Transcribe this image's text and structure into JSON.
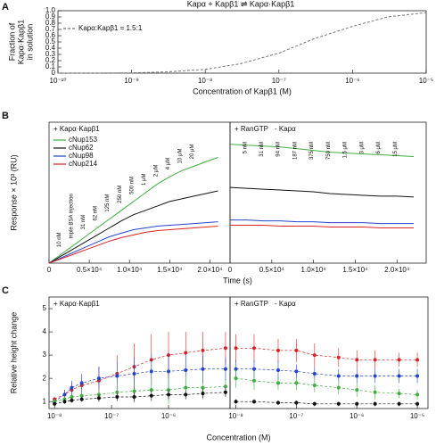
{
  "chart_data": [
    {
      "panel": "A",
      "type": "line",
      "title": "Kapα + Kapβ1 ⇌ Kapα·Kapβ1",
      "xlabel": "Concentration of Kapβ1 (M)",
      "ylabel": [
        "Fraction of",
        "Kapα·Kapβ1",
        "in solution"
      ],
      "xscale": "log",
      "xlim": [
        1e-10,
        1e-05
      ],
      "xticks": [
        {
          "value": 1e-10,
          "label": "10⁻¹⁰"
        },
        {
          "value": 1e-09,
          "label": "10⁻⁹"
        },
        {
          "value": 1e-08,
          "label": "10⁻⁸"
        },
        {
          "value": 1e-07,
          "label": "10⁻⁷"
        },
        {
          "value": 1e-06,
          "label": "10⁻⁶"
        },
        {
          "value": 1e-05,
          "label": "10⁻⁵"
        }
      ],
      "ylim": [
        0,
        1
      ],
      "yticks": [
        0,
        0.1,
        0.2,
        0.3,
        0.4,
        0.5,
        0.6,
        0.7,
        0.8,
        0.9,
        {
          "value": 1,
          "label": "1.0"
        }
      ],
      "subplots": [
        {
          "x": [
            1e-10,
            3e-10,
            1e-09,
            3e-09,
            1e-08,
            3e-08,
            1e-07,
            3e-07,
            1e-06,
            3e-06,
            1e-05
          ],
          "series": [
            {
              "name": "Kapα:Kapβ1 = 1.5:1",
              "color": "#777777",
              "dashed": true,
              "values": [
                0,
                0,
                0.005,
                0.02,
                0.06,
                0.15,
                0.32,
                0.55,
                0.75,
                0.9,
                0.97
              ]
            }
          ]
        }
      ]
    },
    {
      "panel": "B",
      "type": "line",
      "xlabel": "Time (s)",
      "ylabel": [
        "Response × 10³ (RU)"
      ],
      "ylim": [
        0,
        16
      ],
      "subplots": [
        {
          "headings": [
            "+ Kapα·Kapβ1"
          ],
          "xlim": [
            0,
            22500
          ],
          "xticks": [
            0,
            {
              "value": 5000,
              "label": "0.5×10⁴"
            },
            {
              "value": 10000,
              "label": "1.0×10⁴"
            },
            {
              "value": 15000,
              "label": "1.5×10⁴"
            },
            {
              "value": 20000,
              "label": "2.0×10⁴"
            }
          ],
          "x": [
            0,
            1500,
            3000,
            4500,
            6000,
            7500,
            9000,
            10500,
            12000,
            13500,
            15000,
            16500,
            18000,
            19500,
            21000
          ],
          "annotations": [
            "10 nM",
            "triple BSA injection",
            "31 nM",
            "62 nM",
            "125 nM",
            "250 nM",
            "500 nM",
            "1 μM",
            "2 μM",
            "4 μM",
            "10 μM",
            "20 μM"
          ],
          "series": [
            {
              "name": "cNup153",
              "color": "#3fae3f",
              "values": [
                0,
                1,
                2,
                3,
                4,
                5,
                6,
                7,
                8,
                9,
                9.8,
                10.5,
                11,
                11.5,
                12
              ]
            },
            {
              "name": "cNup62",
              "color": "#111111",
              "values": [
                0,
                0.8,
                1.6,
                2.4,
                3.2,
                4,
                4.8,
                5.5,
                6,
                6.5,
                7,
                7.3,
                7.6,
                7.9,
                8.2
              ]
            },
            {
              "name": "cNup98",
              "color": "#2244cc",
              "values": [
                0,
                0.6,
                1.2,
                1.8,
                2.4,
                3,
                3.4,
                3.8,
                4,
                4.2,
                4.3,
                4.4,
                4.5,
                4.6,
                4.7
              ]
            },
            {
              "name": "cNup214",
              "color": "#dd2222",
              "values": [
                0,
                0.5,
                1,
                1.5,
                2,
                2.5,
                2.9,
                3.2,
                3.5,
                3.7,
                3.8,
                3.9,
                4,
                4.1,
                4.2
              ]
            }
          ]
        },
        {
          "headings": [
            "+ RanGTP",
            "- Kapα"
          ],
          "xlim": [
            0,
            23500
          ],
          "xticks": [
            0,
            {
              "value": 5000,
              "label": "0.5×10⁴"
            },
            {
              "value": 10000,
              "label": "1.0×10⁴"
            },
            {
              "value": 15000,
              "label": "1.5×10⁴"
            },
            {
              "value": 20000,
              "label": "2.0×10⁴"
            }
          ],
          "x": [
            0,
            2000,
            4000,
            6000,
            8000,
            10000,
            12000,
            14000,
            16000,
            18000,
            20000,
            22000
          ],
          "annotations": [
            "5 nM",
            "31 nM",
            "94 nM",
            "187 nM",
            "375 nM",
            "750 nM",
            "1.5 μM",
            "3 μM",
            "6 μM",
            "15 μM"
          ],
          "series": [
            {
              "color": "#3fae3f",
              "values": [
                13.5,
                13.4,
                13.3,
                13.2,
                13,
                12.8,
                12.6,
                12.5,
                12.4,
                12.3,
                12.2,
                12.1
              ]
            },
            {
              "color": "#111111",
              "values": [
                8.6,
                8.5,
                8.4,
                8.3,
                8.2,
                8.1,
                7.9,
                7.8,
                7.7,
                7.6,
                7.6,
                7.5
              ]
            },
            {
              "color": "#2244cc",
              "values": [
                4.9,
                4.9,
                4.8,
                4.8,
                4.7,
                4.7,
                4.6,
                4.6,
                4.6,
                4.5,
                4.5,
                4.5
              ]
            },
            {
              "color": "#dd2222",
              "values": [
                4.3,
                4.3,
                4.3,
                4.2,
                4.2,
                4.2,
                4.1,
                4.1,
                4.1,
                4,
                4,
                4
              ]
            }
          ]
        }
      ]
    },
    {
      "panel": "C",
      "type": "errorline",
      "xlabel": "Concentration (M)",
      "ylabel": [
        "Relative height change"
      ],
      "xscale": "log",
      "ylim": [
        0.7,
        5.5
      ],
      "yticks": [
        1,
        2,
        3,
        4,
        5
      ],
      "subplots": [
        {
          "headings": [
            "+ Kapα·Kapβ1"
          ],
          "xlim": [
            8e-09,
            1.2e-05
          ],
          "xticks": [
            {
              "value": 1e-08,
              "label": "10⁻⁸"
            },
            {
              "value": 1e-07,
              "label": "10⁻⁷"
            },
            {
              "value": 1e-06,
              "label": "10⁻⁶"
            }
          ],
          "x": [
            1e-08,
            1.5e-08,
            2e-08,
            3e-08,
            6e-08,
            1.25e-07,
            2.5e-07,
            5e-07,
            1e-06,
            2e-06,
            4e-06,
            1e-05
          ],
          "series": [
            {
              "color": "#dd2222",
              "values": [
                1.1,
                1.3,
                1.5,
                1.7,
                1.9,
                2.2,
                2.5,
                2.8,
                3,
                3.1,
                3.2,
                3.3
              ],
              "errors": [
                0.1,
                0.2,
                0.3,
                0.4,
                0.6,
                0.8,
                1,
                1.1,
                1,
                0.9,
                0.8,
                0.7
              ]
            },
            {
              "color": "#2244cc",
              "values": [
                1,
                1.3,
                1.6,
                1.8,
                2,
                2.1,
                2.2,
                2.3,
                2.3,
                2.35,
                2.4,
                2.4
              ],
              "errors": [
                0.1,
                0.2,
                0.3,
                0.4,
                0.5,
                0.6,
                0.7,
                0.8,
                0.8,
                0.7,
                0.6,
                0.5
              ]
            },
            {
              "color": "#3fae3f",
              "values": [
                1,
                1.1,
                1.2,
                1.25,
                1.3,
                1.4,
                1.45,
                1.5,
                1.5,
                1.6,
                1.6,
                1.65
              ],
              "errors": [
                0.1,
                0.1,
                0.2,
                0.2,
                0.3,
                0.4,
                0.5,
                0.5,
                0.6,
                0.5,
                0.5,
                0.4
              ]
            },
            {
              "color": "#111111",
              "values": [
                0.9,
                1,
                1.05,
                1.1,
                1.15,
                1.2,
                1.2,
                1.25,
                1.3,
                1.3,
                1.35,
                1.4
              ],
              "errors": [
                0.05,
                0.1,
                0.1,
                0.1,
                0.15,
                0.15,
                0.2,
                0.2,
                0.2,
                0.2,
                0.2,
                0.2
              ]
            }
          ]
        },
        {
          "headings": [
            "+ RanGTP",
            "- Kapα"
          ],
          "xlim": [
            8e-09,
            1.5e-05
          ],
          "xticks": [
            {
              "value": 1e-08,
              "label": "10⁻⁸"
            },
            {
              "value": 1e-07,
              "label": "10⁻⁷"
            },
            {
              "value": 1e-06,
              "label": "10⁻⁶"
            },
            {
              "value": 1e-05,
              "label": "10⁻⁵"
            }
          ],
          "x": [
            1e-08,
            2e-08,
            5e-08,
            1e-07,
            2e-07,
            5e-07,
            1e-06,
            2e-06,
            5e-06,
            1e-05
          ],
          "series": [
            {
              "color": "#dd2222",
              "values": [
                3.3,
                3.3,
                3.2,
                3.2,
                3,
                2.9,
                2.8,
                2.8,
                2.8,
                2.8
              ],
              "errors": [
                0.6,
                0.6,
                0.5,
                0.5,
                0.5,
                0.4,
                0.4,
                0.4,
                0.3,
                0.3
              ]
            },
            {
              "color": "#2244cc",
              "values": [
                2.4,
                2.4,
                2.35,
                2.3,
                2.2,
                2.1,
                2.1,
                2.1,
                2.1,
                2.1
              ],
              "errors": [
                0.4,
                0.4,
                0.4,
                0.3,
                0.3,
                0.3,
                0.3,
                0.3,
                0.3,
                0.3
              ]
            },
            {
              "color": "#3fae3f",
              "values": [
                2,
                1.9,
                1.8,
                1.8,
                1.7,
                1.6,
                1.5,
                1.4,
                1.35,
                1.3
              ],
              "errors": [
                0.4,
                0.4,
                0.3,
                0.3,
                0.3,
                0.3,
                0.3,
                0.3,
                0.2,
                0.2
              ]
            },
            {
              "color": "#111111",
              "values": [
                1,
                1,
                0.95,
                0.95,
                0.9,
                0.9,
                0.9,
                0.9,
                0.9,
                0.9
              ],
              "errors": [
                0.1,
                0.1,
                0.1,
                0.1,
                0.1,
                0.1,
                0.1,
                0.1,
                0.1,
                0.1
              ]
            }
          ]
        }
      ]
    }
  ]
}
